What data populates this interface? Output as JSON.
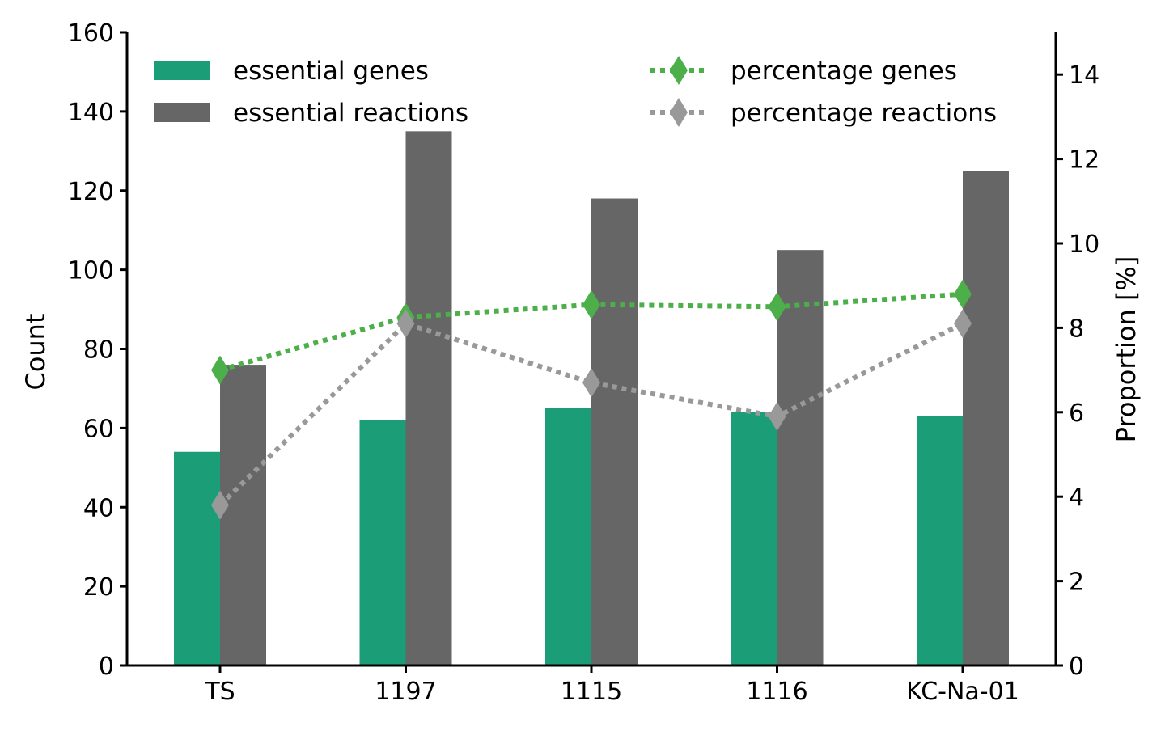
{
  "chart_data": {
    "type": "bar",
    "categories": [
      "TS",
      "1197",
      "1115",
      "1116",
      "KC-Na-01"
    ],
    "series": [
      {
        "name": "essential genes",
        "kind": "bar",
        "axis": "left",
        "color": "#1b9e77",
        "values": [
          54,
          62,
          65,
          64,
          63
        ]
      },
      {
        "name": "essential reactions",
        "kind": "bar",
        "axis": "left",
        "color": "#666666",
        "values": [
          76,
          135,
          118,
          105,
          125
        ]
      },
      {
        "name": "percentage genes",
        "kind": "line",
        "axis": "right",
        "color": "#4daf4a",
        "marker": "diamond",
        "line_style": "dotted",
        "values": [
          7.0,
          8.25,
          8.55,
          8.5,
          8.8
        ]
      },
      {
        "name": "percentage reactions",
        "kind": "line",
        "axis": "right",
        "color": "#999999",
        "marker": "diamond",
        "line_style": "dotted",
        "values": [
          3.8,
          8.1,
          6.7,
          5.9,
          8.1
        ]
      }
    ],
    "ylabel": "Count",
    "ylabel_right": "Proportion [%]",
    "ylim": [
      0,
      160
    ],
    "ylim_right": [
      0,
      15
    ],
    "yticks": [
      "0",
      "20",
      "40",
      "60",
      "80",
      "100",
      "120",
      "140",
      "160"
    ],
    "yticks_right": [
      "0",
      "2",
      "4",
      "6",
      "8",
      "10",
      "12",
      "14"
    ],
    "legend": {
      "columns": 2,
      "placement": "top"
    },
    "grid": false
  }
}
